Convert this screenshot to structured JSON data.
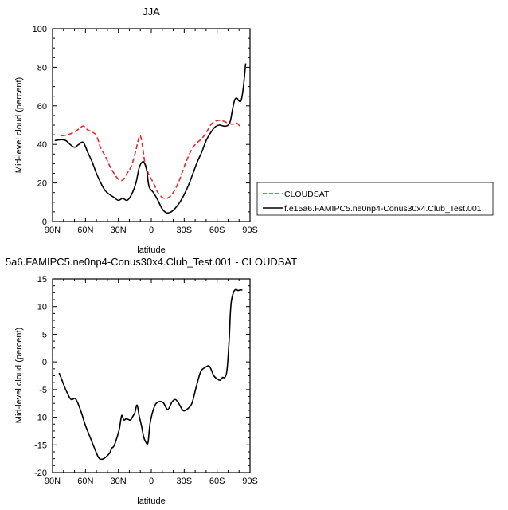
{
  "chart_data": [
    {
      "type": "line",
      "title": "JJA",
      "xlabel": "latitude",
      "ylabel": "Mid-level cloud (percent)",
      "xlim": [
        -90,
        90
      ],
      "ylim": [
        0,
        100
      ],
      "x_ticks": [
        -90,
        -60,
        -30,
        0,
        30,
        60,
        90
      ],
      "x_tick_labels": [
        "90N",
        "60N",
        "30N",
        "0",
        "30S",
        "60S",
        "90S"
      ],
      "y_ticks": [
        0,
        20,
        40,
        60,
        80,
        100
      ],
      "y_tick_labels": [
        "0",
        "20",
        "40",
        "60",
        "80",
        "100"
      ],
      "legend_position": "right",
      "series": [
        {
          "name": "CLOUDSAT",
          "color": "#e8262a",
          "style": "dashed",
          "x": [
            -82,
            -76,
            -70,
            -66,
            -62,
            -58,
            -54,
            -50,
            -46,
            -42,
            -38,
            -34,
            -30,
            -26,
            -22,
            -18,
            -14,
            -12,
            -10,
            -8,
            -6,
            -4,
            -2,
            2,
            6,
            10,
            14,
            18,
            22,
            26,
            30,
            34,
            38,
            42,
            46,
            50,
            54,
            58,
            62,
            66,
            70,
            74,
            78,
            82
          ],
          "y": [
            44.5,
            45,
            46.5,
            48,
            49.5,
            47.5,
            46.5,
            44.5,
            38,
            34,
            29,
            25,
            22,
            21.5,
            25,
            29,
            37,
            42,
            44.5,
            39,
            31,
            27,
            24,
            20,
            15,
            12.5,
            12,
            13.5,
            17,
            22,
            28.5,
            34,
            38.5,
            41,
            43,
            46,
            50,
            52,
            52.5,
            52,
            51,
            50.5,
            51,
            48.5
          ]
        },
        {
          "name": "f.e15a6.FAMIPC5.ne0np4-Conus30x4.Club_Test.001",
          "color": "#000000",
          "style": "solid",
          "x": [
            -88,
            -82,
            -78,
            -74,
            -70,
            -66,
            -62,
            -58,
            -54,
            -50,
            -46,
            -42,
            -38,
            -34,
            -30,
            -26,
            -22,
            -18,
            -14,
            -11,
            -8,
            -6,
            -4,
            -2,
            2,
            6,
            10,
            14,
            18,
            22,
            26,
            30,
            34,
            38,
            42,
            46,
            50,
            54,
            58,
            62,
            66,
            68,
            70,
            72,
            74,
            76,
            78,
            80,
            82,
            84,
            86
          ],
          "y": [
            42,
            42.5,
            42,
            40,
            38.5,
            40,
            41,
            36,
            31,
            25,
            20,
            16,
            14,
            12.5,
            11,
            12,
            11,
            14,
            20,
            28,
            31,
            30,
            26,
            18,
            15,
            11,
            6.5,
            4.5,
            5,
            7,
            10,
            14,
            19,
            25,
            31,
            36,
            42,
            46,
            49,
            50,
            49.5,
            49.5,
            50,
            52,
            58,
            63,
            64,
            62.5,
            63,
            70,
            82
          ]
        }
      ]
    },
    {
      "type": "line",
      "title": "5a6.FAMIPC5.ne0np4-Conus30x4.Club_Test.001 - CLOUDSAT",
      "xlabel": "latitude",
      "ylabel": "Mid-level cloud (percent)",
      "xlim": [
        -90,
        90
      ],
      "ylim": [
        -20,
        15
      ],
      "x_ticks": [
        -90,
        -60,
        -30,
        0,
        30,
        60,
        90
      ],
      "x_tick_labels": [
        "90N",
        "60N",
        "30N",
        "0",
        "30S",
        "60S",
        "90S"
      ],
      "y_ticks": [
        -20,
        -15,
        -10,
        -5,
        0,
        5,
        10,
        15
      ],
      "y_tick_labels": [
        "-20",
        "-15",
        "-10",
        "-5",
        "0",
        "5",
        "10",
        "15"
      ],
      "series": [
        {
          "color": "#000000",
          "style": "solid",
          "x": [
            -84,
            -82,
            -78,
            -74,
            -72,
            -70,
            -68,
            -64,
            -60,
            -56,
            -52,
            -48,
            -45,
            -42,
            -38,
            -36,
            -34,
            -31,
            -29,
            -27,
            -25,
            -23,
            -21,
            -19,
            -17,
            -15,
            -13,
            -11,
            -9,
            -7,
            -5,
            -3,
            -1,
            3,
            7,
            11,
            15,
            19,
            22,
            25,
            29,
            33,
            37,
            41,
            45,
            49,
            53,
            57,
            61,
            63,
            65,
            67,
            69,
            71,
            72,
            73,
            75,
            77,
            79,
            81,
            83
          ],
          "y": [
            -2,
            -3,
            -5,
            -6.6,
            -6.8,
            -6.6,
            -7,
            -9,
            -11.5,
            -13.5,
            -15.5,
            -17.3,
            -17.6,
            -17.3,
            -16.5,
            -15.6,
            -15.2,
            -13.5,
            -12,
            -9.7,
            -10.5,
            -10.3,
            -10.4,
            -10.5,
            -9.9,
            -9.2,
            -7.8,
            -9.8,
            -11.5,
            -13.5,
            -14.5,
            -14.6,
            -11,
            -8,
            -7.2,
            -7.4,
            -8.6,
            -7.2,
            -6.8,
            -7.5,
            -8.8,
            -8.5,
            -7.5,
            -4.5,
            -1.8,
            -1,
            -0.8,
            -2.5,
            -3.2,
            -3.3,
            -2.8,
            -2.8,
            -1.5,
            4,
            8.5,
            11,
            12.6,
            13.1,
            12.9,
            13,
            13
          ]
        }
      ]
    }
  ]
}
